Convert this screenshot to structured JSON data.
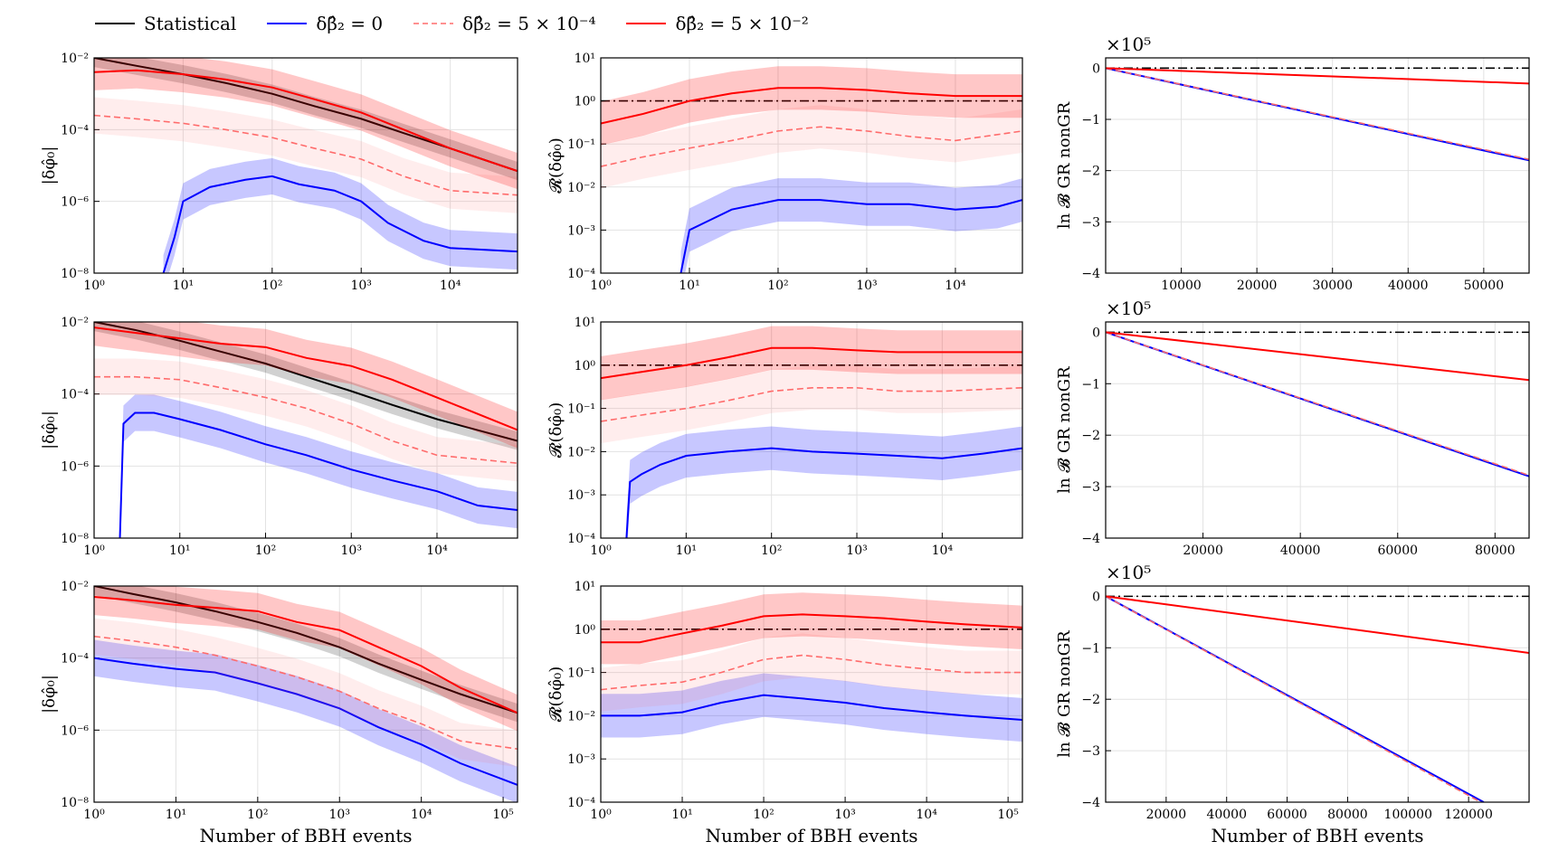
{
  "legend": [
    {
      "label": "Statistical",
      "color": "#000000",
      "dash": "solid"
    },
    {
      "label": "δβ̂₂ = 0",
      "color": "#0000ff",
      "dash": "solid"
    },
    {
      "label": "δβ̂₂ = 5 × 10⁻⁴",
      "color": "#ff6b6b",
      "dash": "dashed"
    },
    {
      "label": "δβ̂₂ = 5 × 10⁻²",
      "color": "#ff0000",
      "dash": "solid"
    }
  ],
  "colors": {
    "stat": "#000000",
    "blue": "#0000ff",
    "red": "#ff0000",
    "lightred": "#ff6b6b",
    "refline": "#000000"
  },
  "xlabel": "Number of BBH events",
  "ylabels": {
    "phi": "|δφ̂₀|",
    "ratio": "𝓡(δφ̂₀)",
    "bayes": "ln 𝓑 GR nonGR"
  },
  "chart_data": [
    {
      "type": "line",
      "row": 0,
      "panel": "phi",
      "xscale": "log",
      "yscale": "log",
      "xlim": [
        1,
        57000
      ],
      "ylim": [
        1e-08,
        0.01
      ],
      "xticks": [
        "10⁰",
        "10¹",
        "10²",
        "10³",
        "10⁴"
      ],
      "yticks": [
        "10⁻⁸",
        "10⁻⁶",
        "10⁻⁴",
        "10⁻²"
      ],
      "series": [
        {
          "name": "Statistical",
          "x": [
            1,
            3,
            10,
            30,
            100,
            300,
            1000,
            3000,
            10000,
            57000
          ],
          "y": [
            0.01,
            0.006,
            0.0035,
            0.002,
            0.001,
            0.00045,
            0.0002,
            8e-05,
            3e-05,
            7e-06
          ]
        },
        {
          "name": "δβ̂₂ = 0",
          "x": [
            6,
            8,
            10,
            20,
            50,
            100,
            200,
            500,
            1000,
            2000,
            5000,
            10000,
            57000
          ],
          "y": [
            1e-08,
            1e-07,
            1e-06,
            2.5e-06,
            4e-06,
            5e-06,
            3e-06,
            2e-06,
            1e-06,
            2.5e-07,
            8e-08,
            5e-08,
            4e-08
          ]
        },
        {
          "name": "δβ̂₂ = 5 × 10⁻⁴",
          "x": [
            1,
            3,
            10,
            30,
            100,
            300,
            1000,
            3000,
            10000,
            57000
          ],
          "y": [
            0.00025,
            0.0002,
            0.00015,
            0.0001,
            6e-05,
            3e-05,
            1.5e-05,
            5e-06,
            2e-06,
            1.5e-06
          ]
        },
        {
          "name": "δβ̂₂ = 5 × 10⁻²",
          "x": [
            1,
            3,
            10,
            30,
            100,
            300,
            1000,
            3000,
            10000,
            57000
          ],
          "y": [
            0.004,
            0.0045,
            0.0035,
            0.0025,
            0.0015,
            0.0007,
            0.0003,
            0.0001,
            3e-05,
            7e-06
          ]
        }
      ]
    },
    {
      "type": "line",
      "row": 0,
      "panel": "ratio",
      "xscale": "log",
      "yscale": "log",
      "xlim": [
        1,
        57000
      ],
      "ylim": [
        0.0001,
        10
      ],
      "xticks": [
        "10⁰",
        "10¹",
        "10²",
        "10³",
        "10⁴"
      ],
      "yticks": [
        "10⁻⁴",
        "10⁻³",
        "10⁻²",
        "10⁻¹",
        "10⁰",
        "10¹"
      ],
      "refline": 1,
      "series": [
        {
          "name": "δβ̂₂ = 0",
          "x": [
            8,
            10,
            15,
            30,
            100,
            300,
            1000,
            3000,
            10000,
            30000,
            57000
          ],
          "y": [
            0.0001,
            0.001,
            0.0015,
            0.003,
            0.005,
            0.005,
            0.004,
            0.004,
            0.003,
            0.0035,
            0.005
          ]
        },
        {
          "name": "δβ̂₂ = 5 × 10⁻⁴",
          "x": [
            1,
            3,
            10,
            30,
            100,
            300,
            1000,
            3000,
            10000,
            57000
          ],
          "y": [
            0.03,
            0.05,
            0.08,
            0.12,
            0.2,
            0.25,
            0.2,
            0.15,
            0.12,
            0.2
          ]
        },
        {
          "name": "δβ̂₂ = 5 × 10⁻²",
          "x": [
            1,
            3,
            10,
            30,
            100,
            300,
            1000,
            3000,
            10000,
            57000
          ],
          "y": [
            0.3,
            0.5,
            1.0,
            1.5,
            2,
            2,
            1.8,
            1.5,
            1.3,
            1.3
          ]
        }
      ]
    },
    {
      "type": "line",
      "row": 0,
      "panel": "bayes",
      "xscale": "linear",
      "yscale": "linear",
      "xlim": [
        0,
        56000
      ],
      "ylim": [
        -4,
        0.2
      ],
      "yfactor": "×10⁵",
      "xticks": [
        "10000",
        "20000",
        "30000",
        "40000",
        "50000"
      ],
      "yticks": [
        "0",
        "−1",
        "−2",
        "−3",
        "−4"
      ],
      "refline": 0,
      "series": [
        {
          "name": "δβ̂₂ = 0",
          "x": [
            0,
            56000
          ],
          "y": [
            0,
            -1.8
          ]
        },
        {
          "name": "δβ̂₂ = 5 × 10⁻⁴",
          "x": [
            0,
            56000
          ],
          "y": [
            0,
            -1.78
          ]
        },
        {
          "name": "δβ̂₂ = 5 × 10⁻²",
          "x": [
            0,
            56000
          ],
          "y": [
            0,
            -0.3
          ]
        }
      ]
    },
    {
      "type": "line",
      "row": 1,
      "panel": "phi",
      "xscale": "log",
      "yscale": "log",
      "xlim": [
        1,
        87000
      ],
      "ylim": [
        1e-08,
        0.01
      ],
      "xticks": [
        "10⁰",
        "10¹",
        "10²",
        "10³",
        "10⁴"
      ],
      "yticks": [
        "10⁻⁸",
        "10⁻⁶",
        "10⁻⁴",
        "10⁻²"
      ],
      "series": [
        {
          "name": "Statistical",
          "x": [
            1,
            3,
            10,
            30,
            100,
            300,
            1000,
            3000,
            10000,
            87000
          ],
          "y": [
            0.01,
            0.006,
            0.003,
            0.0015,
            0.0007,
            0.0003,
            0.00012,
            5e-05,
            2e-05,
            5e-06
          ]
        },
        {
          "name": "δβ̂₂ = 0",
          "x": [
            2,
            2.2,
            3,
            5,
            10,
            30,
            100,
            300,
            1000,
            3000,
            10000,
            30000,
            87000
          ],
          "y": [
            1e-08,
            1.5e-05,
            3e-05,
            3e-05,
            2e-05,
            1e-05,
            4e-06,
            2e-06,
            8e-07,
            4e-07,
            2e-07,
            8e-08,
            6e-08
          ]
        },
        {
          "name": "δβ̂₂ = 5 × 10⁻⁴",
          "x": [
            1,
            3,
            10,
            30,
            100,
            300,
            1000,
            3000,
            10000,
            87000
          ],
          "y": [
            0.0003,
            0.0003,
            0.00025,
            0.00015,
            8e-05,
            4e-05,
            1.5e-05,
            5e-06,
            2e-06,
            1.2e-06
          ]
        },
        {
          "name": "δβ̂₂ = 5 × 10⁻²",
          "x": [
            1,
            3,
            10,
            30,
            100,
            300,
            1000,
            3000,
            10000,
            87000
          ],
          "y": [
            0.007,
            0.005,
            0.0035,
            0.0025,
            0.002,
            0.001,
            0.0006,
            0.00025,
            8e-05,
            1e-05
          ]
        }
      ]
    },
    {
      "type": "line",
      "row": 1,
      "panel": "ratio",
      "xscale": "log",
      "yscale": "log",
      "xlim": [
        1,
        87000
      ],
      "ylim": [
        0.0001,
        10
      ],
      "xticks": [
        "10⁰",
        "10¹",
        "10²",
        "10³",
        "10⁴"
      ],
      "yticks": [
        "10⁻⁴",
        "10⁻³",
        "10⁻²",
        "10⁻¹",
        "10⁰",
        "10¹"
      ],
      "refline": 1,
      "series": [
        {
          "name": "δβ̂₂ = 0",
          "x": [
            2,
            2.2,
            3,
            5,
            10,
            30,
            100,
            300,
            1000,
            3000,
            10000,
            30000,
            87000
          ],
          "y": [
            0.0001,
            0.002,
            0.003,
            0.005,
            0.008,
            0.01,
            0.012,
            0.01,
            0.009,
            0.008,
            0.007,
            0.009,
            0.012
          ]
        },
        {
          "name": "δβ̂₂ = 5 × 10⁻⁴",
          "x": [
            1,
            3,
            10,
            30,
            100,
            300,
            1000,
            3000,
            10000,
            87000
          ],
          "y": [
            0.05,
            0.07,
            0.1,
            0.15,
            0.25,
            0.3,
            0.3,
            0.25,
            0.25,
            0.3
          ]
        },
        {
          "name": "δβ̂₂ = 5 × 10⁻²",
          "x": [
            1,
            3,
            10,
            30,
            100,
            300,
            1000,
            3000,
            10000,
            87000
          ],
          "y": [
            0.5,
            0.7,
            1.0,
            1.5,
            2.5,
            2.5,
            2.2,
            2,
            2,
            2
          ]
        }
      ]
    },
    {
      "type": "line",
      "row": 1,
      "panel": "bayes",
      "xscale": "linear",
      "yscale": "linear",
      "xlim": [
        0,
        87000
      ],
      "ylim": [
        -4,
        0.2
      ],
      "yfactor": "×10⁵",
      "xticks": [
        "20000",
        "40000",
        "60000",
        "80000"
      ],
      "yticks": [
        "0",
        "−1",
        "−2",
        "−3",
        "−4"
      ],
      "refline": 0,
      "series": [
        {
          "name": "δβ̂₂ = 0",
          "x": [
            0,
            87000
          ],
          "y": [
            0,
            -2.8
          ]
        },
        {
          "name": "δβ̂₂ = 5 × 10⁻⁴",
          "x": [
            0,
            87000
          ],
          "y": [
            0,
            -2.78
          ]
        },
        {
          "name": "δβ̂₂ = 5 × 10⁻²",
          "x": [
            0,
            87000
          ],
          "y": [
            0,
            -0.93
          ]
        }
      ]
    },
    {
      "type": "line",
      "row": 2,
      "panel": "phi",
      "xscale": "log",
      "yscale": "log",
      "xlim": [
        1,
        150000
      ],
      "ylim": [
        1e-08,
        0.01
      ],
      "xticks": [
        "10⁰",
        "10¹",
        "10²",
        "10³",
        "10⁴",
        "10⁵"
      ],
      "yticks": [
        "10⁻⁸",
        "10⁻⁶",
        "10⁻⁴",
        "10⁻²"
      ],
      "series": [
        {
          "name": "Statistical",
          "x": [
            1,
            3,
            10,
            30,
            100,
            300,
            1000,
            3000,
            10000,
            30000,
            150000
          ],
          "y": [
            0.01,
            0.006,
            0.0035,
            0.002,
            0.001,
            0.0005,
            0.0002,
            7e-05,
            2.5e-05,
            1e-05,
            3e-06
          ]
        },
        {
          "name": "δβ̂₂ = 0",
          "x": [
            1,
            3,
            10,
            30,
            100,
            300,
            1000,
            3000,
            10000,
            30000,
            150000
          ],
          "y": [
            0.0001,
            7e-05,
            5e-05,
            4e-05,
            2e-05,
            1e-05,
            4e-06,
            1.2e-06,
            4e-07,
            1.2e-07,
            3e-08
          ]
        },
        {
          "name": "δβ̂₂ = 5 × 10⁻⁴",
          "x": [
            1,
            3,
            10,
            30,
            100,
            300,
            1000,
            3000,
            10000,
            30000,
            150000
          ],
          "y": [
            0.0004,
            0.0003,
            0.0002,
            0.00012,
            6e-05,
            3e-05,
            1.2e-05,
            4e-06,
            1.5e-06,
            5e-07,
            3e-07
          ]
        },
        {
          "name": "δβ̂₂ = 5 × 10⁻²",
          "x": [
            1,
            3,
            10,
            30,
            100,
            300,
            1000,
            3000,
            10000,
            30000,
            150000
          ],
          "y": [
            0.005,
            0.004,
            0.003,
            0.0025,
            0.002,
            0.001,
            0.0006,
            0.0002,
            6e-05,
            1.5e-05,
            3e-06
          ]
        }
      ]
    },
    {
      "type": "line",
      "row": 2,
      "panel": "ratio",
      "xscale": "log",
      "yscale": "log",
      "xlim": [
        1,
        150000
      ],
      "ylim": [
        0.0001,
        10
      ],
      "xticks": [
        "10⁰",
        "10¹",
        "10²",
        "10³",
        "10⁴",
        "10⁵"
      ],
      "yticks": [
        "10⁻⁴",
        "10⁻³",
        "10⁻²",
        "10⁻¹",
        "10⁰",
        "10¹"
      ],
      "refline": 1,
      "series": [
        {
          "name": "δβ̂₂ = 0",
          "x": [
            1,
            3,
            10,
            30,
            100,
            300,
            1000,
            3000,
            10000,
            30000,
            150000
          ],
          "y": [
            0.01,
            0.01,
            0.012,
            0.02,
            0.03,
            0.025,
            0.02,
            0.015,
            0.012,
            0.01,
            0.008
          ]
        },
        {
          "name": "δβ̂₂ = 5 × 10⁻⁴",
          "x": [
            1,
            3,
            10,
            30,
            100,
            300,
            1000,
            3000,
            10000,
            30000,
            150000
          ],
          "y": [
            0.04,
            0.05,
            0.06,
            0.1,
            0.2,
            0.25,
            0.2,
            0.15,
            0.12,
            0.1,
            0.1
          ]
        },
        {
          "name": "δβ̂₂ = 5 × 10⁻²",
          "x": [
            1,
            3,
            10,
            30,
            100,
            300,
            1000,
            3000,
            10000,
            30000,
            150000
          ],
          "y": [
            0.5,
            0.5,
            0.8,
            1.2,
            2,
            2.2,
            2,
            1.8,
            1.5,
            1.3,
            1.1
          ]
        }
      ]
    },
    {
      "type": "line",
      "row": 2,
      "panel": "bayes",
      "xscale": "linear",
      "yscale": "linear",
      "xlim": [
        0,
        140000
      ],
      "ylim": [
        -4,
        0.2
      ],
      "yfactor": "×10⁵",
      "xticks": [
        "20000",
        "40000",
        "60000",
        "80000",
        "100000",
        "120000"
      ],
      "yticks": [
        "0",
        "−1",
        "−2",
        "−3",
        "−4"
      ],
      "refline": 0,
      "series": [
        {
          "name": "δβ̂₂ = 0",
          "x": [
            0,
            125000
          ],
          "y": [
            0,
            -4
          ]
        },
        {
          "name": "δβ̂₂ = 5 × 10⁻⁴",
          "x": [
            0,
            124000
          ],
          "y": [
            0,
            -4
          ]
        },
        {
          "name": "δβ̂₂ = 5 × 10⁻²",
          "x": [
            0,
            140000
          ],
          "y": [
            0,
            -1.1
          ]
        }
      ]
    }
  ]
}
